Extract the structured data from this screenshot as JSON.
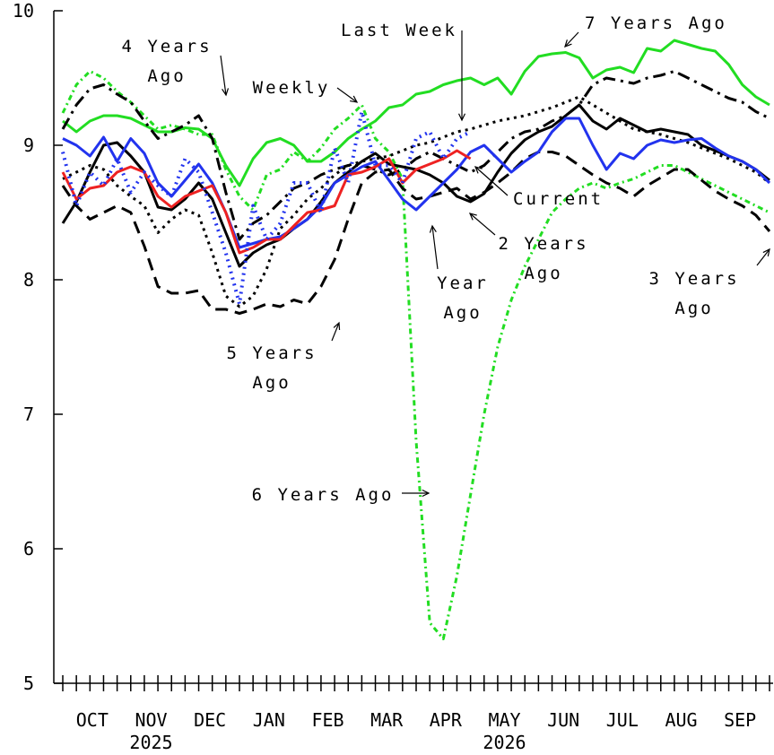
{
  "chart_data": {
    "type": "line",
    "ylim": [
      5,
      10
    ],
    "y_ticks": [
      "5",
      "6",
      "7",
      "8",
      "9",
      "10"
    ],
    "x_month_labels": [
      "OCT",
      "NOV",
      "DEC",
      "JAN",
      "FEB",
      "MAR",
      "APR",
      "MAY",
      "JUN",
      "JUL",
      "AUG",
      "SEP"
    ],
    "x_year_labels": [
      {
        "text": "2025",
        "month_index": 1
      },
      {
        "text": "2026",
        "month_index": 7
      }
    ],
    "x_domain_weeks": [
      0,
      52
    ],
    "grid": false,
    "series": [
      {
        "name": "7 Years Ago",
        "color": "#22dd22",
        "dash": "solid",
        "width": 3,
        "x": [
          0,
          1,
          2,
          3,
          4,
          5,
          6,
          7,
          8,
          9,
          10,
          11,
          12,
          13,
          14,
          15,
          16,
          17,
          18,
          19,
          20,
          21,
          22,
          23,
          24,
          25,
          26,
          27,
          28,
          29,
          30,
          31,
          32,
          33,
          34,
          35,
          36,
          37,
          38,
          39,
          40,
          41,
          42,
          43,
          44,
          45,
          46,
          47,
          48,
          49,
          50,
          51,
          52
        ],
        "values": [
          9.18,
          9.1,
          9.18,
          9.22,
          9.22,
          9.2,
          9.15,
          9.1,
          9.1,
          9.13,
          9.12,
          9.05,
          8.85,
          8.7,
          8.9,
          9.02,
          9.05,
          9.0,
          8.88,
          8.88,
          8.95,
          9.05,
          9.12,
          9.18,
          9.28,
          9.3,
          9.38,
          9.4,
          9.45,
          9.48,
          9.5,
          9.45,
          9.5,
          9.38,
          9.55,
          9.66,
          9.68,
          9.69,
          9.65,
          9.5,
          9.56,
          9.58,
          9.54,
          9.72,
          9.7,
          9.78,
          9.75,
          9.72,
          9.7,
          9.6,
          9.45,
          9.36,
          9.3
        ]
      },
      {
        "name": "6 Years Ago",
        "color": "#22dd22",
        "dash": "6 4 2 4",
        "width": 3,
        "x": [
          0,
          1,
          2,
          3,
          4,
          5,
          6,
          7,
          8,
          9,
          10,
          11,
          12,
          13,
          14,
          15,
          16,
          17,
          18,
          19,
          20,
          21,
          22,
          23,
          24,
          25,
          26,
          27,
          28,
          29,
          30,
          31,
          32,
          33,
          34,
          35,
          36,
          37,
          38,
          39,
          40,
          41,
          42,
          43,
          44,
          45,
          46,
          47,
          48,
          49,
          50,
          51,
          52
        ],
        "values": [
          9.24,
          9.45,
          9.55,
          9.5,
          9.4,
          9.32,
          9.22,
          9.12,
          9.15,
          9.12,
          9.08,
          9.08,
          8.82,
          8.62,
          8.52,
          8.78,
          8.82,
          8.95,
          8.88,
          8.98,
          9.12,
          9.2,
          9.3,
          9.05,
          8.95,
          8.75,
          6.8,
          5.45,
          5.33,
          5.8,
          6.4,
          7.0,
          7.5,
          7.85,
          8.1,
          8.3,
          8.5,
          8.6,
          8.68,
          8.72,
          8.68,
          8.72,
          8.75,
          8.8,
          8.85,
          8.85,
          8.8,
          8.75,
          8.7,
          8.65,
          8.6,
          8.55,
          8.5
        ]
      },
      {
        "name": "5 Years Ago",
        "color": "#000000",
        "dash": "14 8",
        "width": 3,
        "x": [
          0,
          1,
          2,
          3,
          4,
          5,
          6,
          7,
          8,
          9,
          10,
          11,
          12,
          13,
          14,
          15,
          16,
          17,
          18,
          19,
          20,
          21,
          22,
          23,
          24,
          25,
          26,
          27,
          28,
          29,
          30,
          31,
          32,
          33,
          34,
          35,
          36,
          37,
          38,
          39,
          40,
          41,
          42,
          43,
          44,
          45,
          46,
          47,
          48,
          49,
          50,
          51,
          52
        ],
        "values": [
          8.7,
          8.55,
          8.45,
          8.5,
          8.55,
          8.5,
          8.25,
          7.95,
          7.9,
          7.9,
          7.92,
          7.78,
          7.78,
          7.75,
          7.78,
          7.82,
          7.8,
          7.85,
          7.82,
          7.95,
          8.15,
          8.45,
          8.72,
          8.8,
          8.82,
          8.68,
          8.6,
          8.62,
          8.65,
          8.68,
          8.6,
          8.65,
          8.72,
          8.8,
          8.9,
          8.95,
          8.95,
          8.92,
          8.85,
          8.78,
          8.72,
          8.68,
          8.62,
          8.7,
          8.76,
          8.82,
          8.82,
          8.74,
          8.66,
          8.6,
          8.55,
          8.48,
          8.36
        ]
      },
      {
        "name": "4 Years Ago",
        "color": "#000000",
        "dash": "14 6 3 6",
        "width": 3,
        "x": [
          0,
          1,
          2,
          3,
          4,
          5,
          6,
          7,
          8,
          9,
          10,
          11,
          12,
          13,
          14,
          15,
          16,
          17,
          18,
          19,
          20,
          21,
          22,
          23,
          24,
          25,
          26,
          27,
          28,
          29,
          30,
          31,
          32,
          33,
          34,
          35,
          36,
          37,
          38,
          39,
          40,
          41,
          42,
          43,
          44,
          45,
          46,
          47,
          48,
          49,
          50,
          51,
          52
        ],
        "values": [
          9.12,
          9.3,
          9.42,
          9.45,
          9.38,
          9.32,
          9.18,
          9.05,
          9.1,
          9.15,
          9.22,
          9.05,
          8.65,
          8.3,
          8.42,
          8.48,
          8.58,
          8.68,
          8.72,
          8.78,
          8.82,
          8.85,
          8.85,
          8.82,
          8.78,
          8.82,
          8.9,
          8.95,
          8.9,
          8.85,
          8.8,
          8.85,
          8.95,
          9.05,
          9.1,
          9.12,
          9.18,
          9.22,
          9.3,
          9.45,
          9.5,
          9.48,
          9.46,
          9.5,
          9.52,
          9.55,
          9.5,
          9.45,
          9.4,
          9.35,
          9.32,
          9.25,
          9.2
        ]
      },
      {
        "name": "3 Years Ago",
        "color": "#000000",
        "dash": "3 5",
        "width": 3,
        "x": [
          0,
          1,
          2,
          3,
          4,
          5,
          6,
          7,
          8,
          9,
          10,
          11,
          12,
          13,
          14,
          15,
          16,
          17,
          18,
          19,
          20,
          21,
          22,
          23,
          24,
          25,
          26,
          27,
          28,
          29,
          30,
          31,
          32,
          33,
          34,
          35,
          36,
          37,
          38,
          39,
          40,
          41,
          42,
          43,
          44,
          45,
          46,
          47,
          48,
          49,
          50,
          51,
          52
        ],
        "values": [
          8.75,
          8.8,
          8.85,
          8.82,
          8.7,
          8.62,
          8.55,
          8.35,
          8.45,
          8.52,
          8.48,
          8.2,
          7.88,
          7.8,
          7.88,
          8.08,
          8.38,
          8.48,
          8.6,
          8.68,
          8.78,
          8.85,
          8.88,
          8.9,
          8.92,
          8.96,
          9.0,
          9.02,
          9.06,
          9.1,
          9.12,
          9.15,
          9.18,
          9.2,
          9.22,
          9.25,
          9.28,
          9.32,
          9.36,
          9.3,
          9.24,
          9.18,
          9.12,
          9.1,
          9.08,
          9.05,
          9.02,
          8.98,
          8.94,
          8.9,
          8.85,
          8.8,
          8.72
        ]
      },
      {
        "name": "2 Years Ago",
        "color": "#000000",
        "dash": "solid",
        "width": 3,
        "x": [
          0,
          1,
          2,
          3,
          4,
          5,
          6,
          7,
          8,
          9,
          10,
          11,
          12,
          13,
          14,
          15,
          16,
          17,
          18,
          19,
          20,
          21,
          22,
          23,
          24,
          25,
          26,
          27,
          28,
          29,
          30,
          31,
          32,
          33,
          34,
          35,
          36,
          37,
          38,
          39,
          40,
          41,
          42,
          43,
          44,
          45,
          46,
          47,
          48,
          49,
          50,
          51,
          52
        ],
        "values": [
          8.42,
          8.58,
          8.8,
          9.0,
          9.02,
          8.92,
          8.8,
          8.54,
          8.52,
          8.6,
          8.72,
          8.6,
          8.35,
          8.1,
          8.2,
          8.26,
          8.3,
          8.38,
          8.45,
          8.58,
          8.72,
          8.8,
          8.88,
          8.94,
          8.86,
          8.84,
          8.82,
          8.78,
          8.72,
          8.62,
          8.58,
          8.64,
          8.8,
          8.94,
          9.04,
          9.1,
          9.14,
          9.22,
          9.3,
          9.18,
          9.12,
          9.2,
          9.15,
          9.1,
          9.12,
          9.1,
          9.08,
          9.0,
          8.96,
          8.92,
          8.88,
          8.82,
          8.74
        ]
      },
      {
        "name": "Year Ago",
        "color": "#2233ee",
        "dash": "solid",
        "width": 3,
        "x": [
          0,
          1,
          2,
          3,
          4,
          5,
          6,
          7,
          8,
          9,
          10,
          11,
          12,
          13,
          14,
          15,
          16,
          17,
          18,
          19,
          20,
          21,
          22,
          23,
          24,
          25,
          26,
          27,
          28,
          29,
          30,
          31,
          32,
          33,
          34,
          35,
          36,
          37,
          38,
          39,
          40,
          41,
          42,
          43,
          44,
          45,
          46,
          47,
          48,
          49,
          50,
          51,
          52
        ],
        "values": [
          9.05,
          9.0,
          8.92,
          9.06,
          8.88,
          9.05,
          8.94,
          8.72,
          8.62,
          8.74,
          8.86,
          8.72,
          8.5,
          8.24,
          8.27,
          8.3,
          8.32,
          8.38,
          8.45,
          8.55,
          8.72,
          8.78,
          8.84,
          8.88,
          8.74,
          8.6,
          8.52,
          8.62,
          8.72,
          8.82,
          8.95,
          9.0,
          8.9,
          8.8,
          8.88,
          8.95,
          9.1,
          9.2,
          9.2,
          9.0,
          8.82,
          8.94,
          8.9,
          9.0,
          9.04,
          9.02,
          9.04,
          9.05,
          8.98,
          8.92,
          8.88,
          8.82,
          8.72
        ]
      },
      {
        "name": "Current",
        "color": "#ee2222",
        "dash": "solid",
        "width": 3,
        "x": [
          0,
          1,
          2,
          3,
          4,
          5,
          6,
          7,
          8,
          9,
          10,
          11,
          12,
          13,
          14,
          15,
          16,
          17,
          18,
          19,
          20,
          21,
          22,
          23,
          24,
          25,
          26,
          27,
          28,
          29,
          30
        ],
        "values": [
          8.8,
          8.6,
          8.68,
          8.7,
          8.8,
          8.84,
          8.8,
          8.62,
          8.54,
          8.62,
          8.66,
          8.7,
          8.5,
          8.2,
          8.24,
          8.3,
          8.3,
          8.4,
          8.5,
          8.52,
          8.55,
          8.78,
          8.8,
          8.84,
          8.9,
          8.72,
          8.82,
          8.86,
          8.9,
          8.96,
          8.9
        ]
      },
      {
        "name": "Weekly",
        "color": "#2233ee",
        "dash": "2 5",
        "width": 4,
        "x": [
          0,
          1,
          2,
          3,
          4,
          5,
          6,
          7,
          8,
          9,
          10,
          11,
          12,
          13,
          14,
          15,
          16,
          17,
          18,
          19,
          20,
          21,
          22,
          23,
          24,
          25,
          26,
          27,
          28,
          29,
          30
        ],
        "values": [
          8.95,
          8.55,
          8.8,
          8.7,
          8.9,
          8.65,
          8.8,
          8.7,
          8.62,
          8.9,
          8.8,
          8.5,
          8.2,
          7.82,
          8.55,
          8.3,
          8.42,
          8.72,
          8.72,
          8.5,
          8.98,
          8.72,
          9.25,
          8.85,
          8.85,
          8.72,
          9.05,
          9.1,
          8.9,
          9.05,
          9.1
        ]
      }
    ],
    "annotations": [
      {
        "id": "7-years-ago",
        "lines": [
          "7 Years Ago"
        ]
      },
      {
        "id": "4-years-ago",
        "lines": [
          "4 Years",
          "Ago"
        ]
      },
      {
        "id": "last-week",
        "lines": [
          "Last Week"
        ]
      },
      {
        "id": "weekly",
        "lines": [
          "Weekly"
        ]
      },
      {
        "id": "current",
        "lines": [
          "Current"
        ]
      },
      {
        "id": "2-years-ago",
        "lines": [
          "2 Years",
          "Ago"
        ]
      },
      {
        "id": "year-ago",
        "lines": [
          "Year",
          "Ago"
        ]
      },
      {
        "id": "3-years-ago",
        "lines": [
          "3 Years",
          "Ago"
        ]
      },
      {
        "id": "5-years-ago",
        "lines": [
          "5 Years",
          "Ago"
        ]
      },
      {
        "id": "6-years-ago",
        "lines": [
          "6 Years Ago"
        ]
      }
    ]
  }
}
